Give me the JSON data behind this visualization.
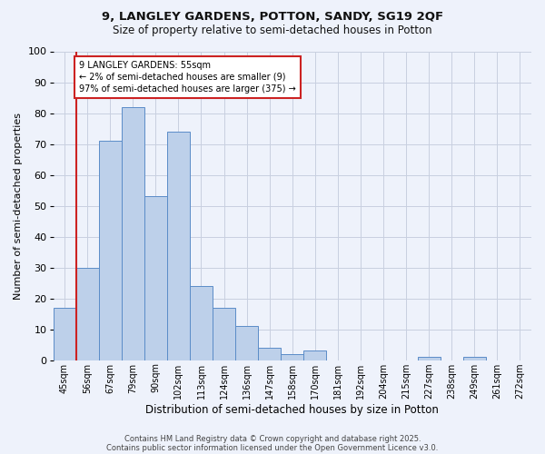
{
  "title1": "9, LANGLEY GARDENS, POTTON, SANDY, SG19 2QF",
  "title2": "Size of property relative to semi-detached houses in Potton",
  "xlabel": "Distribution of semi-detached houses by size in Potton",
  "ylabel": "Number of semi-detached properties",
  "bin_labels": [
    "45sqm",
    "56sqm",
    "67sqm",
    "79sqm",
    "90sqm",
    "102sqm",
    "113sqm",
    "124sqm",
    "136sqm",
    "147sqm",
    "158sqm",
    "170sqm",
    "181sqm",
    "192sqm",
    "204sqm",
    "215sqm",
    "227sqm",
    "238sqm",
    "249sqm",
    "261sqm",
    "272sqm"
  ],
  "bar_values": [
    17,
    30,
    71,
    82,
    53,
    74,
    24,
    17,
    11,
    4,
    2,
    3,
    0,
    0,
    0,
    0,
    1,
    0,
    1,
    0,
    0
  ],
  "bar_color": "#bdd0ea",
  "bar_edge_color": "#5b8cc8",
  "highlight_color": "#cc2222",
  "property_line_x": 0.5,
  "annotation_text": "9 LANGLEY GARDENS: 55sqm\n← 2% of semi-detached houses are smaller (9)\n97% of semi-detached houses are larger (375) →",
  "annotation_box_color": "#ffffff",
  "annotation_box_edge": "#cc2222",
  "ylim": [
    0,
    100
  ],
  "yticks": [
    0,
    10,
    20,
    30,
    40,
    50,
    60,
    70,
    80,
    90,
    100
  ],
  "footer1": "Contains HM Land Registry data © Crown copyright and database right 2025.",
  "footer2": "Contains public sector information licensed under the Open Government Licence v3.0.",
  "background_color": "#eef2fb",
  "grid_color": "#c8cfe0"
}
